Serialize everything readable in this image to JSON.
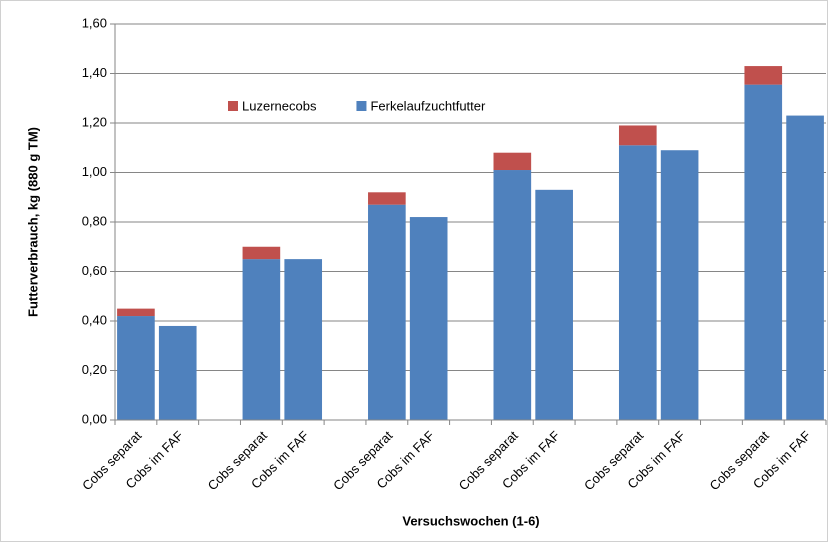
{
  "chart_data": {
    "type": "stacked_bar",
    "categories": [
      "Cobs separat",
      "Cobs  im FAF",
      null,
      "Cobs separat",
      "Cobs  im FAF",
      null,
      "Cobs separat",
      "Cobs  im FAF",
      null,
      "Cobs separat",
      "Cobs  im FAF",
      null,
      "Cobs separat",
      "Cobs  im FAF",
      null,
      "Cobs separat",
      "Cobs  im FAF"
    ],
    "series": [
      {
        "name": "Ferkelaufzuchtfutter",
        "color": "#4f81bd",
        "values": [
          0.42,
          0.38,
          null,
          0.65,
          0.65,
          null,
          0.87,
          0.82,
          null,
          1.01,
          0.93,
          null,
          1.11,
          1.09,
          null,
          1.355,
          1.23
        ]
      },
      {
        "name": "Luzernecobs",
        "color": "#c0504d",
        "values": [
          0.03,
          null,
          null,
          0.05,
          null,
          null,
          0.05,
          null,
          null,
          0.07,
          null,
          null,
          0.08,
          null,
          null,
          0.075,
          null
        ]
      }
    ],
    "x_label": "Versuchswochen  (1-6)",
    "y_label": "Futterverbrauch, kg (880 g TM)",
    "ylim": [
      0,
      1.6
    ],
    "yticks": [
      {
        "value": 0,
        "label": "0,00"
      },
      {
        "value": 0.2,
        "label": "0,20"
      },
      {
        "value": 0.4,
        "label": "0,40"
      },
      {
        "value": 0.6,
        "label": "0,60"
      },
      {
        "value": 0.8,
        "label": "0,80"
      },
      {
        "value": 1.0,
        "label": "1,00"
      },
      {
        "value": 1.2,
        "label": "1,20"
      },
      {
        "value": 1.4,
        "label": "1,40"
      },
      {
        "value": 1.6,
        "label": "1,60"
      }
    ],
    "grid": true,
    "legend": "top"
  }
}
